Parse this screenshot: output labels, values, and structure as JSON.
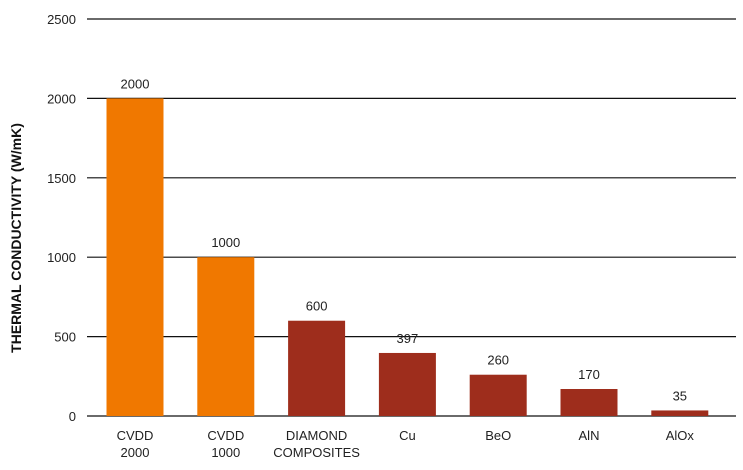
{
  "chart_data": {
    "type": "bar",
    "title": "",
    "xlabel": "",
    "ylabel": "THERMAL CONDUCTIVITY (W/mK)",
    "ylim": [
      0,
      2500
    ],
    "yticks": [
      0,
      500,
      1000,
      1500,
      2000,
      2500
    ],
    "grid": true,
    "categories": [
      [
        "CVDD",
        "2000"
      ],
      [
        "CVDD",
        "1000"
      ],
      [
        "DIAMOND",
        "COMPOSITES"
      ],
      [
        "Cu"
      ],
      [
        "BeO"
      ],
      [
        "AlN"
      ],
      [
        "AlOx"
      ]
    ],
    "values": [
      2000,
      1000,
      600,
      397,
      260,
      170,
      35
    ],
    "data_labels": [
      "2000",
      "1000",
      "600",
      "397",
      "260",
      "170",
      "35"
    ],
    "bar_colors": [
      "#f07800",
      "#f07800",
      "#9e2d1c",
      "#9e2d1c",
      "#9e2d1c",
      "#9e2d1c",
      "#9e2d1c"
    ]
  }
}
